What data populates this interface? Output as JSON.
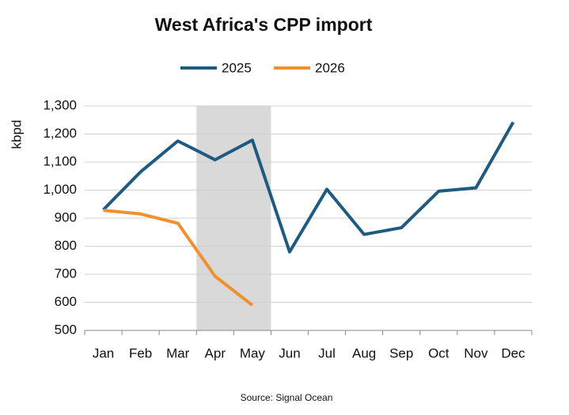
{
  "chart_data": {
    "type": "line",
    "title": "West Africa's CPP import",
    "y_label": "kbpd",
    "source": "Source: Signal Ocean",
    "categories": [
      "Jan",
      "Feb",
      "Mar",
      "Apr",
      "May",
      "Jun",
      "Jul",
      "Aug",
      "Sep",
      "Oct",
      "Nov",
      "Dec"
    ],
    "series": [
      {
        "name": "2025",
        "color": "#1f5a80",
        "values": [
          930,
          1065,
          1175,
          1108,
          1178,
          780,
          1003,
          842,
          866,
          996,
          1008,
          1242
        ]
      },
      {
        "name": "2026",
        "color": "#f0902e",
        "values": [
          928,
          915,
          882,
          693,
          590,
          null,
          null,
          null,
          null,
          null,
          null,
          null
        ]
      }
    ],
    "shaded_categories": [
      "Apr",
      "May"
    ],
    "ylim": [
      500,
      1300
    ],
    "yticks": [
      500,
      600,
      700,
      800,
      900,
      {
        "value": 1000,
        "label": "1,000"
      },
      {
        "value": 1100,
        "label": "1,100"
      },
      {
        "value": 1200,
        "label": "1,200"
      },
      {
        "value": 1300,
        "label": "1,300"
      }
    ],
    "grid": true,
    "legend": "top"
  }
}
